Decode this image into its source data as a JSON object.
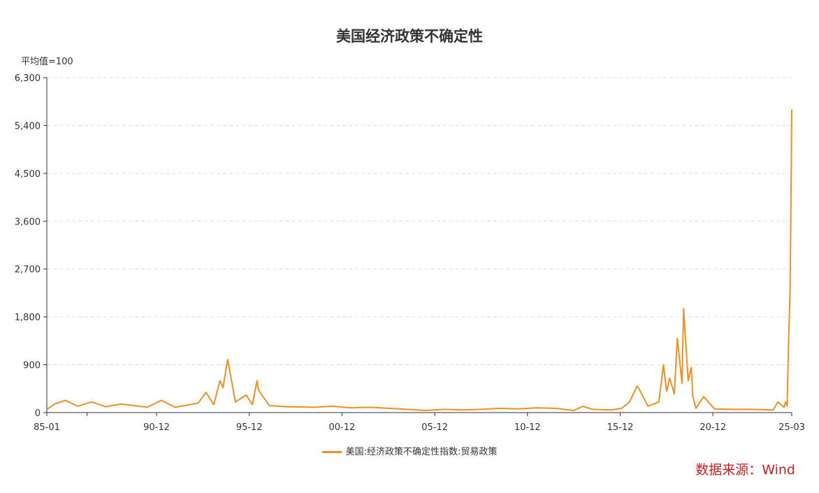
{
  "chart_data": {
    "type": "line",
    "title": "美国经济政策不确定性",
    "unit_label": "平均值=100",
    "x_tick_labels": [
      "85-01",
      "90-12",
      "95-12",
      "00-12",
      "05-12",
      "10-12",
      "15-12",
      "20-12",
      "25-03"
    ],
    "x_range": [
      "1985-01",
      "2025-03"
    ],
    "ylim": [
      0,
      6300
    ],
    "y_ticks": [
      0,
      900,
      1800,
      2700,
      3600,
      4500,
      5400,
      6300
    ],
    "y_tick_labels": [
      "0",
      "900",
      "1,800",
      "2,700",
      "3,600",
      "4,500",
      "5,400",
      "6,300"
    ],
    "grid": "horizontal dashed",
    "legend_position": "bottom-center",
    "series": [
      {
        "name": "美国:经济政策不确定性指数:贸易政策",
        "color": "#f0901e",
        "x": [
          "1985-01",
          "1985-06",
          "1986-01",
          "1986-09",
          "1987-06",
          "1988-03",
          "1989-01",
          "1989-10",
          "1990-06",
          "1991-03",
          "1991-12",
          "1992-06",
          "1993-03",
          "1993-08",
          "1994-01",
          "1994-05",
          "1994-07",
          "1994-10",
          "1995-03",
          "1995-10",
          "1996-02",
          "1996-05",
          "1996-06",
          "1997-01",
          "1998-01",
          "1999-06",
          "2000-06",
          "2001-06",
          "2002-06",
          "2003-06",
          "2004-06",
          "2005-06",
          "2006-06",
          "2007-06",
          "2008-06",
          "2009-06",
          "2010-06",
          "2011-06",
          "2012-06",
          "2013-06",
          "2013-12",
          "2014-06",
          "2015-06",
          "2016-01",
          "2016-06",
          "2016-11",
          "2017-01",
          "2017-06",
          "2018-01",
          "2018-04",
          "2018-06",
          "2018-08",
          "2018-11",
          "2019-01",
          "2019-04",
          "2019-05",
          "2019-08",
          "2019-10",
          "2019-11",
          "2020-01",
          "2020-06",
          "2021-01",
          "2022-01",
          "2023-01",
          "2024-03",
          "2024-06",
          "2024-10",
          "2024-11",
          "2024-12",
          "2025-01",
          "2025-02",
          "2025-03"
        ],
        "values": [
          60,
          160,
          230,
          120,
          200,
          110,
          160,
          130,
          100,
          230,
          100,
          130,
          180,
          380,
          150,
          600,
          470,
          1000,
          200,
          330,
          150,
          600,
          420,
          130,
          110,
          100,
          120,
          90,
          100,
          80,
          60,
          40,
          60,
          50,
          60,
          80,
          70,
          90,
          80,
          40,
          120,
          60,
          50,
          80,
          200,
          500,
          400,
          120,
          200,
          900,
          400,
          650,
          350,
          1400,
          550,
          1950,
          600,
          850,
          300,
          80,
          300,
          70,
          60,
          60,
          50,
          200,
          100,
          200,
          120,
          1400,
          2400,
          5700
        ]
      }
    ]
  },
  "legend_label": "美国:经济政策不确定性指数:贸易政策",
  "source_label": "数据来源：Wind"
}
